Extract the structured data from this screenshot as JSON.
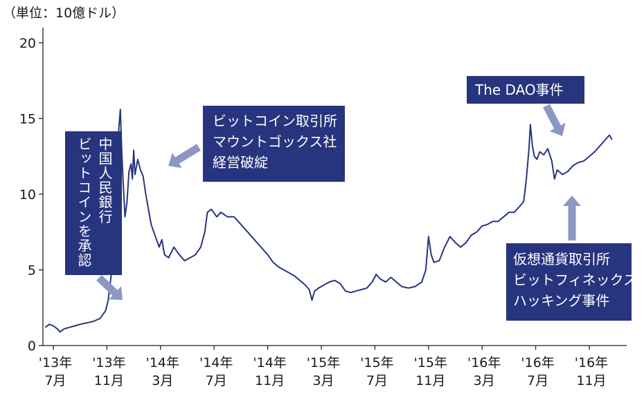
{
  "unit_label": "（単位：10億ドル）",
  "annotations": {
    "pboc": [
      "中国人民銀行",
      "ビットコインを承認"
    ],
    "mtgox": [
      "ビットコイン取引所",
      "マウントゴックス社",
      "経営破綻"
    ],
    "dao": [
      "The DAO事件"
    ],
    "bitfinex": [
      "仮想通貨取引所",
      "ビットフィネックス",
      "ハッキング事件"
    ]
  },
  "colors": {
    "line": "#27347e",
    "box": "#27347e",
    "arrow": "#8d97c4",
    "axis": "#222222"
  },
  "chart_data": {
    "type": "line",
    "title": "",
    "xlabel": "",
    "ylabel": "（単位：10億ドル）",
    "ylim": [
      0,
      21
    ],
    "yticks": [
      0,
      5,
      10,
      15,
      20
    ],
    "xticks": [
      {
        "year": "'13年",
        "month": "7月",
        "m": 0
      },
      {
        "year": "'13年",
        "month": "11月",
        "m": 4
      },
      {
        "year": "'14年",
        "month": "3月",
        "m": 8
      },
      {
        "year": "'14年",
        "month": "7月",
        "m": 12
      },
      {
        "year": "'14年",
        "month": "11月",
        "m": 16
      },
      {
        "year": "'15年",
        "month": "3月",
        "m": 20
      },
      {
        "year": "'15年",
        "month": "7月",
        "m": 24
      },
      {
        "year": "'15年",
        "month": "11月",
        "m": 28
      },
      {
        "year": "'16年",
        "month": "3月",
        "m": 32
      },
      {
        "year": "'16年",
        "month": "7月",
        "m": 36
      },
      {
        "year": "'16年",
        "month": "11月",
        "m": 40
      }
    ],
    "series": [
      {
        "points": [
          [
            -0.6,
            1.2
          ],
          [
            -0.3,
            1.4
          ],
          [
            0.0,
            1.3
          ],
          [
            0.3,
            1.1
          ],
          [
            0.5,
            0.9
          ],
          [
            0.8,
            1.1
          ],
          [
            1.2,
            1.2
          ],
          [
            1.6,
            1.3
          ],
          [
            2.0,
            1.4
          ],
          [
            2.5,
            1.5
          ],
          [
            3.0,
            1.6
          ],
          [
            3.5,
            1.8
          ],
          [
            3.9,
            2.3
          ],
          [
            4.1,
            3.0
          ],
          [
            4.3,
            4.5
          ],
          [
            4.5,
            7.5
          ],
          [
            4.7,
            10.5
          ],
          [
            4.8,
            12.0
          ],
          [
            4.9,
            14.5
          ],
          [
            5.0,
            15.6
          ],
          [
            5.1,
            13.0
          ],
          [
            5.2,
            11.0
          ],
          [
            5.35,
            8.5
          ],
          [
            5.5,
            9.5
          ],
          [
            5.65,
            11.5
          ],
          [
            5.8,
            12.0
          ],
          [
            5.9,
            11.0
          ],
          [
            6.0,
            12.9
          ],
          [
            6.1,
            11.3
          ],
          [
            6.3,
            12.3
          ],
          [
            6.5,
            11.6
          ],
          [
            6.7,
            11.2
          ],
          [
            6.9,
            10.0
          ],
          [
            7.1,
            9.0
          ],
          [
            7.3,
            8.0
          ],
          [
            7.5,
            7.5
          ],
          [
            7.7,
            7.0
          ],
          [
            7.9,
            6.5
          ],
          [
            8.1,
            7.0
          ],
          [
            8.3,
            6.0
          ],
          [
            8.6,
            5.8
          ],
          [
            9.0,
            6.5
          ],
          [
            9.4,
            6.0
          ],
          [
            9.8,
            5.6
          ],
          [
            10.2,
            5.8
          ],
          [
            10.6,
            6.0
          ],
          [
            11.0,
            6.5
          ],
          [
            11.3,
            7.5
          ],
          [
            11.5,
            8.8
          ],
          [
            11.8,
            9.0
          ],
          [
            12.2,
            8.5
          ],
          [
            12.5,
            8.8
          ],
          [
            13.0,
            8.5
          ],
          [
            13.5,
            8.5
          ],
          [
            14.0,
            8.0
          ],
          [
            14.5,
            7.5
          ],
          [
            15.0,
            7.0
          ],
          [
            15.5,
            6.5
          ],
          [
            16.0,
            6.0
          ],
          [
            16.4,
            5.5
          ],
          [
            16.8,
            5.2
          ],
          [
            17.2,
            5.0
          ],
          [
            17.6,
            4.8
          ],
          [
            18.0,
            4.6
          ],
          [
            18.4,
            4.3
          ],
          [
            18.8,
            4.0
          ],
          [
            19.1,
            3.7
          ],
          [
            19.3,
            3.0
          ],
          [
            19.5,
            3.6
          ],
          [
            19.8,
            3.8
          ],
          [
            20.2,
            4.0
          ],
          [
            20.6,
            4.2
          ],
          [
            21.0,
            4.3
          ],
          [
            21.4,
            4.1
          ],
          [
            21.8,
            3.6
          ],
          [
            22.2,
            3.5
          ],
          [
            22.6,
            3.6
          ],
          [
            23.0,
            3.7
          ],
          [
            23.4,
            3.8
          ],
          [
            23.8,
            4.2
          ],
          [
            24.1,
            4.7
          ],
          [
            24.4,
            4.4
          ],
          [
            24.8,
            4.2
          ],
          [
            25.2,
            4.5
          ],
          [
            25.6,
            4.2
          ],
          [
            26.0,
            3.9
          ],
          [
            26.5,
            3.8
          ],
          [
            27.0,
            3.9
          ],
          [
            27.5,
            4.2
          ],
          [
            27.8,
            5.0
          ],
          [
            28.0,
            7.2
          ],
          [
            28.2,
            6.0
          ],
          [
            28.4,
            5.5
          ],
          [
            28.8,
            5.6
          ],
          [
            29.2,
            6.5
          ],
          [
            29.6,
            7.2
          ],
          [
            30.0,
            6.8
          ],
          [
            30.4,
            6.5
          ],
          [
            30.8,
            6.8
          ],
          [
            31.2,
            7.3
          ],
          [
            31.6,
            7.5
          ],
          [
            32.0,
            7.9
          ],
          [
            32.4,
            8.0
          ],
          [
            32.8,
            8.2
          ],
          [
            33.2,
            8.2
          ],
          [
            33.6,
            8.5
          ],
          [
            34.0,
            8.8
          ],
          [
            34.4,
            8.8
          ],
          [
            34.8,
            9.2
          ],
          [
            35.1,
            9.5
          ],
          [
            35.3,
            11.0
          ],
          [
            35.5,
            13.0
          ],
          [
            35.6,
            14.6
          ],
          [
            35.75,
            13.2
          ],
          [
            35.9,
            12.5
          ],
          [
            36.1,
            12.3
          ],
          [
            36.3,
            12.8
          ],
          [
            36.6,
            12.6
          ],
          [
            36.9,
            13.0
          ],
          [
            37.2,
            12.2
          ],
          [
            37.4,
            11.0
          ],
          [
            37.6,
            11.6
          ],
          [
            38.0,
            11.3
          ],
          [
            38.4,
            11.5
          ],
          [
            38.8,
            11.9
          ],
          [
            39.2,
            12.1
          ],
          [
            39.6,
            12.2
          ],
          [
            40.0,
            12.5
          ],
          [
            40.4,
            12.8
          ],
          [
            40.8,
            13.2
          ],
          [
            41.2,
            13.6
          ],
          [
            41.5,
            13.9
          ],
          [
            41.7,
            13.6
          ]
        ]
      }
    ]
  }
}
